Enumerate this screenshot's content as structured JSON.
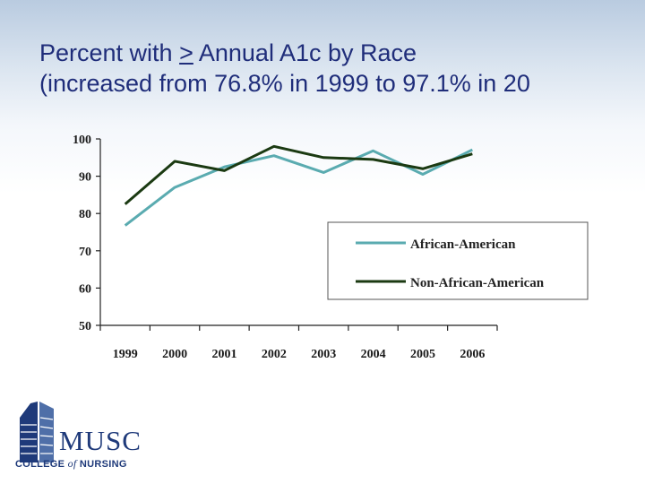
{
  "slide": {
    "title_part1": "Percent with ",
    "title_symbol": ">",
    "title_part2": " Annual A1c by Race",
    "title_line2": "(increased from 76.8% in 1999 to 97.1% in 20"
  },
  "logo": {
    "name": "MUSC",
    "sub_pre": "COLLEGE ",
    "sub_of": "of",
    "sub_post": " NURSING",
    "color": "#1f3a7a"
  },
  "chart_data": {
    "type": "line",
    "x": [
      "1999",
      "2000",
      "2001",
      "2002",
      "2003",
      "2004",
      "2005",
      "2006"
    ],
    "ylim": [
      50,
      100
    ],
    "yticks": [
      50,
      60,
      70,
      80,
      90,
      100
    ],
    "legend_position": "inside right",
    "grid": false,
    "series": [
      {
        "name": "African-American",
        "color": "#5aabb0",
        "values": [
          76.8,
          87,
          92.5,
          95.5,
          91,
          96.8,
          90.5,
          97.1
        ]
      },
      {
        "name": "Non-African-American",
        "color": "#1b3a12",
        "values": [
          82.5,
          94,
          91.5,
          98,
          95,
          94.5,
          92,
          96
        ]
      }
    ]
  }
}
